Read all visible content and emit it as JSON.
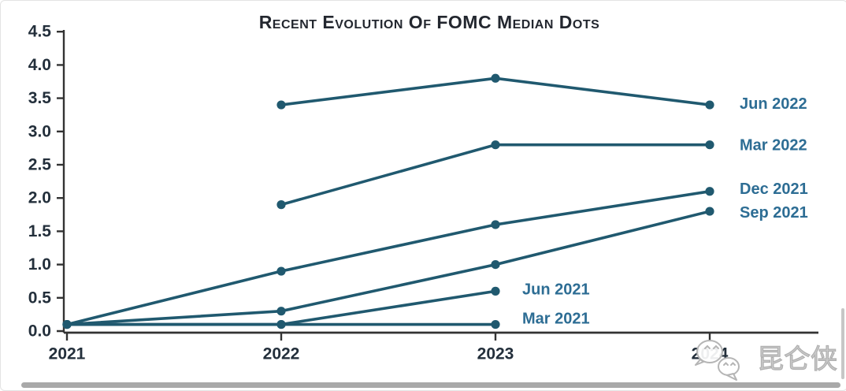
{
  "chart_data": {
    "type": "line",
    "title": "Recent Evolution Of FOMC Median Dots",
    "xlabel": "",
    "ylabel": "",
    "x": [
      2021,
      2022,
      2023,
      2024
    ],
    "x_tick_labels": [
      "2021",
      "2022",
      "2023",
      "2024"
    ],
    "ylim": [
      0,
      4.5
    ],
    "ytick_step": 0.5,
    "y_tick_labels": [
      "0.0",
      "0.5",
      "1.0",
      "1.5",
      "2.0",
      "2.5",
      "3.0",
      "3.5",
      "4.0",
      "4.5"
    ],
    "grid": false,
    "legend_position": "labels-at-line-endpoints",
    "series": [
      {
        "name": "Jun 2022",
        "points": [
          [
            2022,
            3.4
          ],
          [
            2023,
            3.8
          ],
          [
            2024,
            3.4
          ]
        ],
        "label": {
          "dx": 38,
          "dy": -1
        }
      },
      {
        "name": "Mar 2022",
        "points": [
          [
            2022,
            1.9
          ],
          [
            2023,
            2.8
          ],
          [
            2024,
            2.8
          ]
        ],
        "label": {
          "dx": 38,
          "dy": 1
        }
      },
      {
        "name": "Dec 2021",
        "points": [
          [
            2021,
            0.1
          ],
          [
            2022,
            0.9
          ],
          [
            2023,
            1.6
          ],
          [
            2024,
            2.1
          ]
        ],
        "label": {
          "dx": 38,
          "dy": -3
        }
      },
      {
        "name": "Sep 2021",
        "points": [
          [
            2021,
            0.1
          ],
          [
            2022,
            0.3
          ],
          [
            2023,
            1.0
          ],
          [
            2024,
            1.8
          ]
        ],
        "label": {
          "dx": 38,
          "dy": 2
        }
      },
      {
        "name": "Jun 2021",
        "points": [
          [
            2021,
            0.1
          ],
          [
            2022,
            0.1
          ],
          [
            2023,
            0.6
          ]
        ],
        "label": {
          "dx": 34,
          "dy": -2
        }
      },
      {
        "name": "Mar 2021",
        "points": [
          [
            2021,
            0.1
          ],
          [
            2022,
            0.1
          ],
          [
            2023,
            0.1
          ]
        ],
        "label": {
          "dx": 34,
          "dy": -7
        }
      }
    ],
    "line_color": "#20596f",
    "dot_color": "#20596f",
    "series_label_color": "#2d6d94",
    "tick_label_color": "#232f3b",
    "axis_color": "#333333",
    "title_color": "#23272f"
  },
  "watermark": {
    "text": "昆仑侠",
    "icon": "wechat-icon",
    "color": "#c9c9c9"
  }
}
